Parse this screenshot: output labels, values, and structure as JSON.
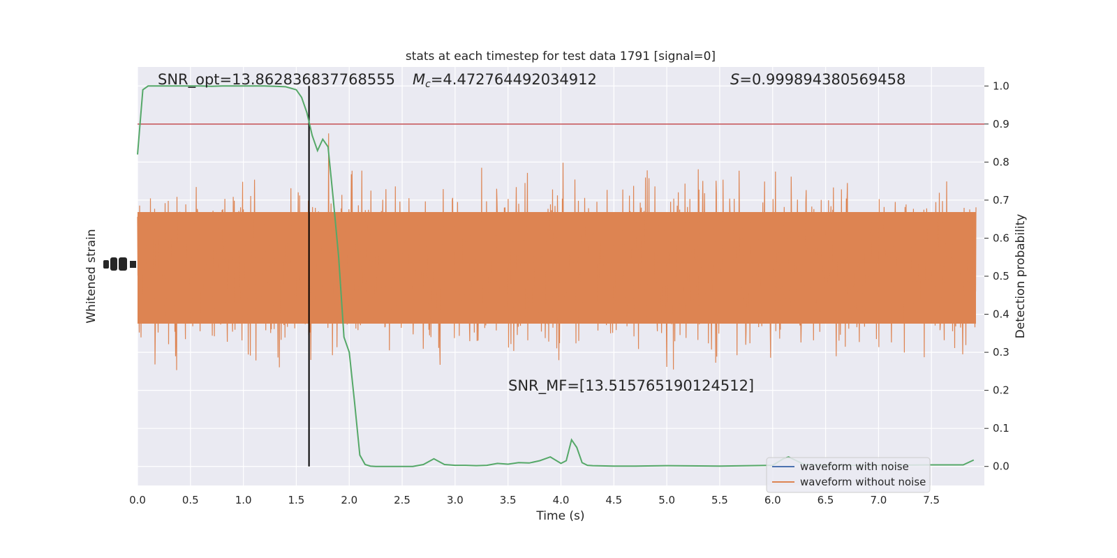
{
  "chart_data": {
    "type": "line",
    "title": "stats at each timestep for test data 1791 [signal=0]",
    "xlabel": "Time (s)",
    "ylabel_left": "Whitened strain",
    "ylabel_right": "Detection probability",
    "xlim": [
      0.0,
      8.0
    ],
    "ylim_right": [
      -0.05,
      1.05
    ],
    "x_ticks": [
      "0.0",
      "0.5",
      "1.0",
      "1.5",
      "2.0",
      "2.5",
      "3.0",
      "3.5",
      "4.0",
      "4.5",
      "5.0",
      "5.5",
      "6.0",
      "6.5",
      "7.0",
      "7.5"
    ],
    "y_ticks_right": [
      "0.0",
      "0.1",
      "0.2",
      "0.3",
      "0.4",
      "0.5",
      "0.6",
      "0.7",
      "0.8",
      "0.9",
      "1.0"
    ],
    "grid": true,
    "legend_location": "lower right",
    "annotations": {
      "snr_opt": "SNR_opt=13.862836837768555",
      "mc_symbol": "M",
      "mc_sub": "c",
      "mc_value": "=4.472764492034912",
      "s_symbol": "S",
      "s_value": "=0.999894380569458",
      "snr_mf": "SNR_MF=[13.515765190124512]"
    },
    "threshold": {
      "y": 0.9,
      "color": "#c44e52"
    },
    "vline": {
      "x": 1.62,
      "color": "#000000"
    },
    "series": [
      {
        "name": "waveform with noise",
        "color": "#4c72b0"
      },
      {
        "name": "waveform without noise",
        "color": "#dd8452"
      }
    ],
    "probability": {
      "color": "#55a868",
      "x": [
        0.0,
        0.05,
        0.1,
        0.15,
        0.2,
        0.3,
        0.4,
        0.5,
        0.6,
        0.7,
        0.8,
        0.9,
        1.0,
        1.1,
        1.2,
        1.3,
        1.4,
        1.5,
        1.55,
        1.6,
        1.65,
        1.7,
        1.75,
        1.8,
        1.85,
        1.9,
        1.95,
        2.0,
        2.05,
        2.1,
        2.15,
        2.2,
        2.25,
        2.3,
        2.4,
        2.5,
        2.6,
        2.7,
        2.8,
        2.9,
        3.0,
        3.1,
        3.2,
        3.3,
        3.4,
        3.5,
        3.6,
        3.7,
        3.8,
        3.9,
        4.0,
        4.05,
        4.1,
        4.15,
        4.2,
        4.25,
        4.3,
        4.5,
        4.7,
        5.0,
        5.5,
        6.0,
        6.1,
        6.15,
        6.3,
        6.5,
        7.0,
        7.5,
        7.8,
        7.9
      ],
      "y": [
        0.82,
        0.99,
        1.0,
        1.0,
        1.0,
        1.0,
        1.0,
        1.0,
        1.0,
        0.999,
        1.0,
        1.0,
        1.0,
        1.0,
        1.0,
        0.999,
        0.998,
        0.99,
        0.97,
        0.93,
        0.87,
        0.83,
        0.86,
        0.84,
        0.7,
        0.55,
        0.34,
        0.3,
        0.17,
        0.03,
        0.005,
        0.001,
        0.0,
        0.0,
        0.0,
        0.0,
        0.0,
        0.005,
        0.02,
        0.005,
        0.003,
        0.003,
        0.002,
        0.003,
        0.008,
        0.006,
        0.01,
        0.009,
        0.015,
        0.025,
        0.008,
        0.015,
        0.07,
        0.05,
        0.01,
        0.003,
        0.002,
        0.001,
        0.001,
        0.002,
        0.001,
        0.003,
        0.02,
        0.025,
        0.005,
        0.003,
        0.003,
        0.004,
        0.004,
        0.017
      ]
    }
  }
}
